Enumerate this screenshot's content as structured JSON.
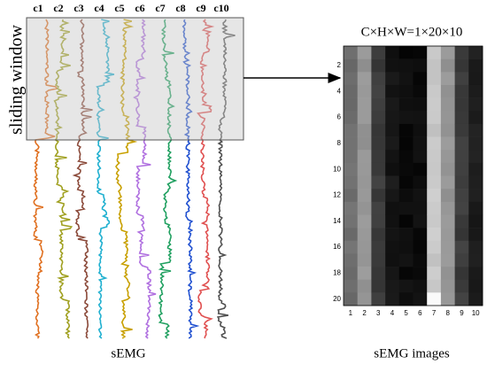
{
  "channels": [
    "c1",
    "c2",
    "c3",
    "c4",
    "c5",
    "c6",
    "c7",
    "c8",
    "c9",
    "c10"
  ],
  "side_label": "sliding window",
  "shape_label": "C×H×W=1×20×10",
  "image_yticks": [
    "2",
    "4",
    "6",
    "8",
    "10",
    "12",
    "14",
    "16",
    "18",
    "20"
  ],
  "image_xticks": [
    "1",
    "2",
    "3",
    "4",
    "5",
    "6",
    "7",
    "8",
    "9",
    "10"
  ],
  "left_caption": "sEMG",
  "right_caption": "sEMG images"
}
